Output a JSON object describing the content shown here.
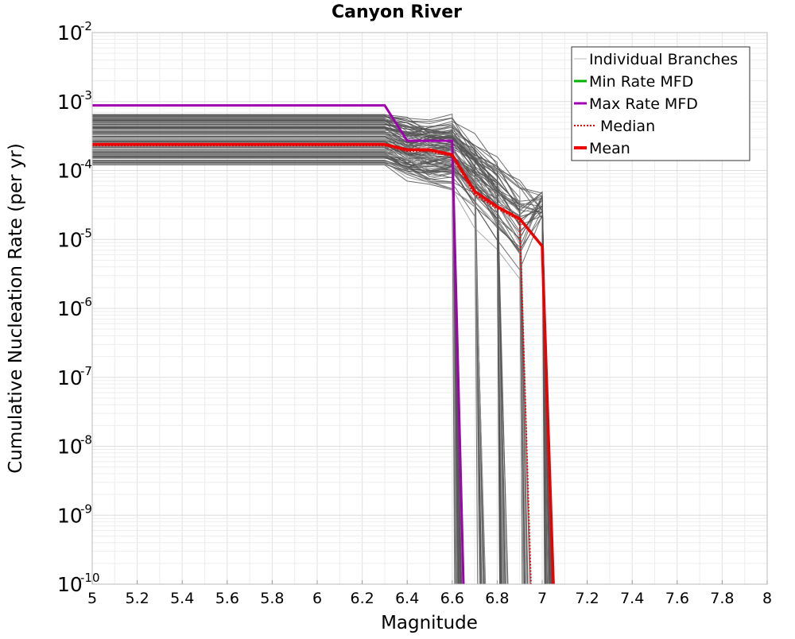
{
  "chart_data": {
    "type": "line",
    "title": "Canyon River",
    "xlabel": "Magnitude",
    "ylabel": "Cumulative Nucleation Rate (per yr)",
    "xlim": [
      5,
      8
    ],
    "ylim_log10": [
      -10,
      -2
    ],
    "y_scale": "log",
    "grid": true,
    "legend_position": "top-right",
    "x_ticks": [
      "5",
      "5.2",
      "5.4",
      "5.6",
      "5.8",
      "6",
      "6.2",
      "6.4",
      "6.6",
      "6.8",
      "7",
      "7.2",
      "7.4",
      "7.6",
      "7.8",
      "8"
    ],
    "y_ticks": [
      {
        "base": "10",
        "exp": "-2",
        "log": -2
      },
      {
        "base": "10",
        "exp": "-3",
        "log": -3
      },
      {
        "base": "10",
        "exp": "-4",
        "log": -4
      },
      {
        "base": "10",
        "exp": "-5",
        "log": -5
      },
      {
        "base": "10",
        "exp": "-6",
        "log": -6
      },
      {
        "base": "10",
        "exp": "-7",
        "log": -7
      },
      {
        "base": "10",
        "exp": "-8",
        "log": -8
      },
      {
        "base": "10",
        "exp": "-9",
        "log": -9
      },
      {
        "base": "10",
        "exp": "-10",
        "log": -10
      }
    ],
    "legend": [
      {
        "name": "Individual Branches",
        "color": "#bbbbbb",
        "style": "solid-thin"
      },
      {
        "name": "Min Rate MFD",
        "color": "#00b000",
        "style": "solid"
      },
      {
        "name": "Max Rate MFD",
        "color": "#a000b0",
        "style": "solid"
      },
      {
        "name": "Median",
        "color": "#ee0000",
        "style": "dotted"
      },
      {
        "name": "Mean",
        "color": "#ee0000",
        "style": "solid-thick"
      }
    ],
    "branches": {
      "name": "Individual Branches",
      "color": "#555555",
      "count_approx": 120,
      "plateau_rate_range": [
        0.00012,
        0.00065
      ],
      "step_magnitudes": [
        6.6,
        6.7,
        6.8,
        6.9,
        7.0
      ],
      "rate_at_m7_range": [
        2e-05,
        5e-05
      ]
    },
    "series": [
      {
        "name": "Max Rate MFD",
        "color": "#a000b0",
        "x": [
          5.0,
          6.3,
          6.4,
          6.5,
          6.6,
          6.65
        ],
        "y": [
          0.00088,
          0.00088,
          0.00027,
          0.00027,
          0.00027,
          1e-10
        ]
      },
      {
        "name": "Mean",
        "color": "#ee0000",
        "x": [
          5.0,
          6.3,
          6.4,
          6.5,
          6.6,
          6.7,
          6.8,
          6.9,
          7.0,
          7.05
        ],
        "y": [
          0.00024,
          0.00024,
          0.0002,
          0.0002,
          0.00017,
          5e-05,
          3e-05,
          2e-05,
          8e-06,
          1e-10
        ]
      },
      {
        "name": "Median",
        "color": "#ee0000",
        "x": [
          5.0,
          6.3,
          6.4,
          6.5,
          6.6,
          6.7,
          6.8,
          6.9,
          6.95
        ],
        "y": [
          0.00023,
          0.00023,
          0.00019,
          0.00019,
          0.00016,
          4.5e-05,
          2.8e-05,
          1.9e-05,
          1e-10
        ]
      }
    ]
  }
}
